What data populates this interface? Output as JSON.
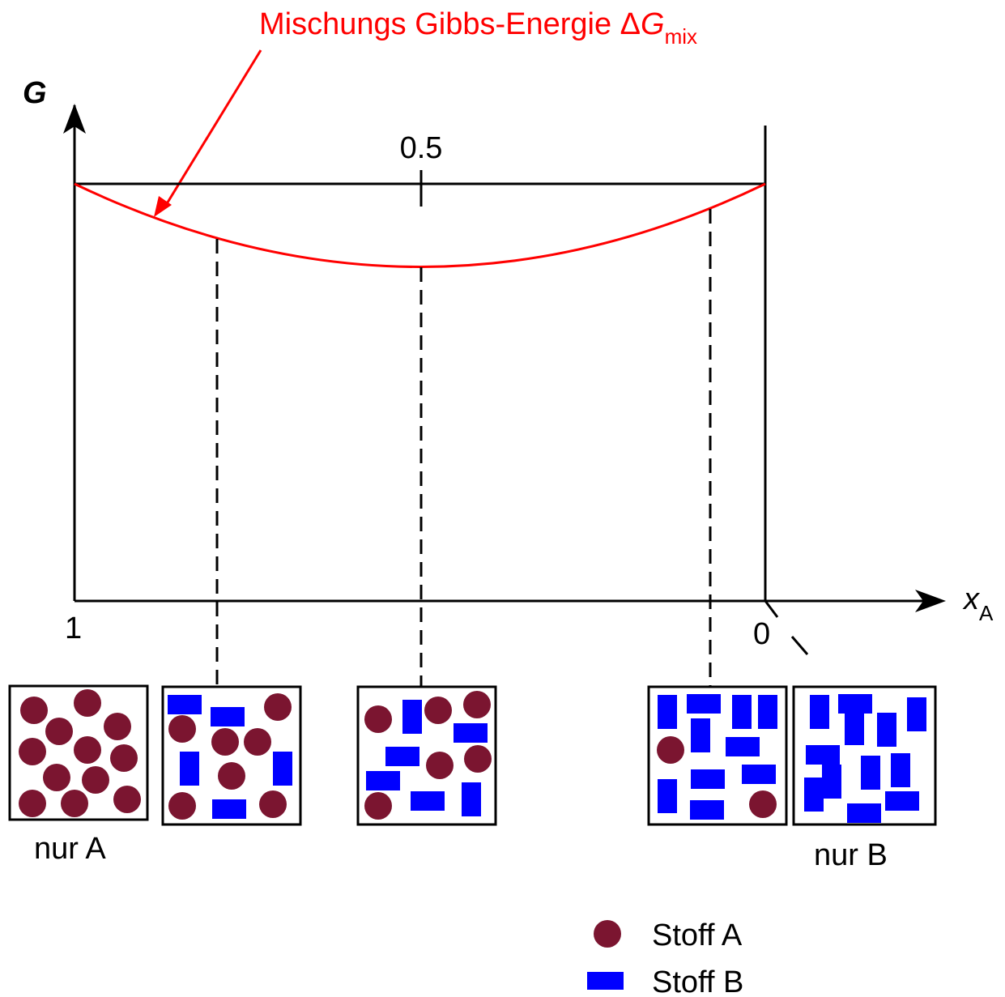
{
  "annotation": {
    "text": "Mischungs Gibbs-Energie Δ",
    "symbol": "G",
    "subscript": "mix"
  },
  "y_axis": {
    "label": "G"
  },
  "x_axis": {
    "symbol": "x",
    "subscript": "A",
    "ticks": [
      "1",
      "0.5",
      "0"
    ]
  },
  "box_labels": [
    "nur A",
    "nur B"
  ],
  "legend": [
    {
      "label": "Stoff A"
    },
    {
      "label": "Stoff B"
    }
  ]
}
